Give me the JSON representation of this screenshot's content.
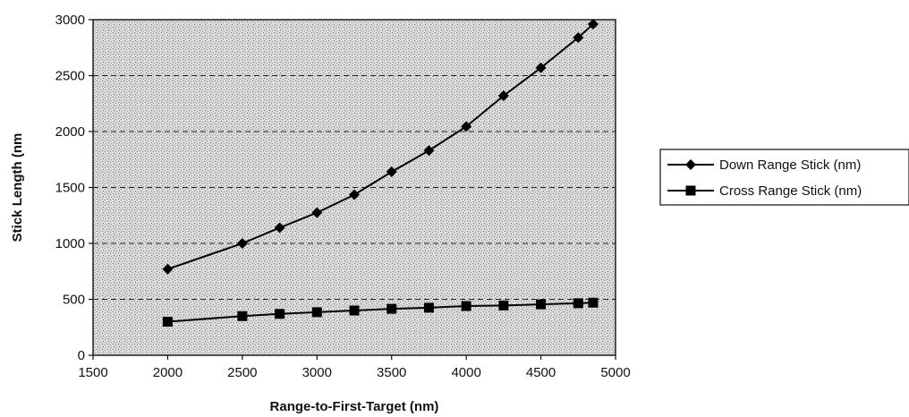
{
  "chart_data": {
    "type": "line",
    "title": "",
    "xlabel": "Range-to-First-Target (nm)",
    "ylabel": "Stick Length (nm",
    "xlim": [
      1500,
      5000
    ],
    "ylim": [
      0,
      3000
    ],
    "xticks": [
      1500,
      2000,
      2500,
      3000,
      3500,
      4000,
      4500,
      5000
    ],
    "yticks": [
      0,
      500,
      1000,
      1500,
      2000,
      2500,
      3000
    ],
    "grid": "horizontal-dashed",
    "legend_position": "right",
    "series": [
      {
        "name": "Down Range Stick (nm)",
        "marker": "diamond",
        "color": "#000000",
        "x": [
          2000,
          2500,
          2750,
          3000,
          3250,
          3500,
          3750,
          4000,
          4250,
          4500,
          4750,
          4850
        ],
        "y": [
          770,
          1000,
          1140,
          1275,
          1435,
          1640,
          1830,
          2045,
          2320,
          2570,
          2840,
          2960
        ]
      },
      {
        "name": "Cross Range Stick (nm)",
        "marker": "square",
        "color": "#000000",
        "x": [
          2000,
          2500,
          2750,
          3000,
          3250,
          3500,
          3750,
          4000,
          4250,
          4500,
          4750,
          4850
        ],
        "y": [
          300,
          350,
          370,
          385,
          400,
          415,
          425,
          440,
          445,
          455,
          465,
          470
        ]
      }
    ]
  }
}
